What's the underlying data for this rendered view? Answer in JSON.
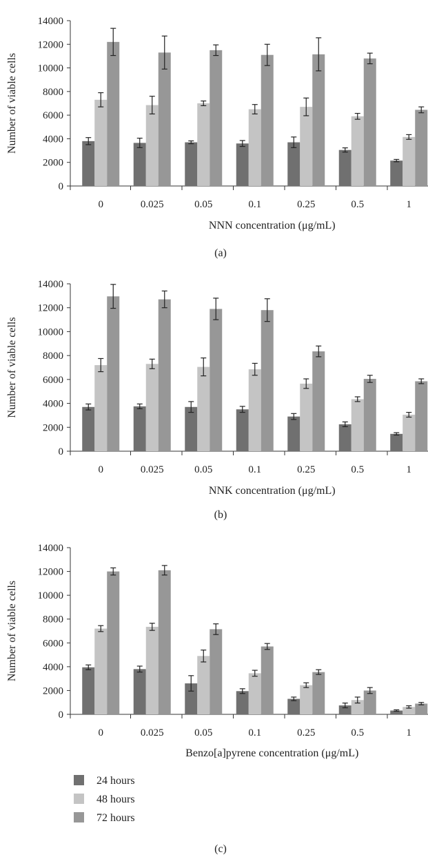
{
  "legend": {
    "items": [
      {
        "label": "24 hours",
        "color": "#707070"
      },
      {
        "label": "48 hours",
        "color": "#c4c4c4"
      },
      {
        "label": "72 hours",
        "color": "#979797"
      }
    ]
  },
  "chart_data": [
    {
      "type": "bar",
      "panel_label": "(a)",
      "xlabel": "NNN concentration (μg/mL)",
      "ylabel": "Number of viable cells",
      "ylim": [
        0,
        14000
      ],
      "yticks": [
        0,
        2000,
        4000,
        6000,
        8000,
        10000,
        12000,
        14000
      ],
      "categories": [
        "0",
        "0.025",
        "0.05",
        "0.1",
        "0.25",
        "0.5",
        "1"
      ],
      "grid": false,
      "series": [
        {
          "name": "24 hours",
          "color": "#707070",
          "values": [
            3800,
            3650,
            3700,
            3600,
            3700,
            3050,
            2150
          ],
          "errors": [
            300,
            400,
            120,
            250,
            450,
            180,
            100
          ]
        },
        {
          "name": "48 hours",
          "color": "#c4c4c4",
          "values": [
            7300,
            6850,
            7000,
            6500,
            6700,
            5900,
            4150
          ],
          "errors": [
            600,
            750,
            200,
            400,
            750,
            250,
            200
          ]
        },
        {
          "name": "72 hours",
          "color": "#979797",
          "values": [
            12200,
            11300,
            11500,
            11100,
            11150,
            10800,
            6450
          ],
          "errors": [
            1150,
            1400,
            450,
            900,
            1400,
            450,
            250
          ]
        }
      ]
    },
    {
      "type": "bar",
      "panel_label": "(b)",
      "xlabel": "NNK concentration (μg/mL)",
      "ylabel": "Number of viable cells",
      "ylim": [
        0,
        14000
      ],
      "yticks": [
        0,
        2000,
        4000,
        6000,
        8000,
        10000,
        12000,
        14000
      ],
      "categories": [
        "0",
        "0.025",
        "0.05",
        "0.1",
        "0.25",
        "0.5",
        "1"
      ],
      "grid": false,
      "series": [
        {
          "name": "24 hours",
          "color": "#707070",
          "values": [
            3700,
            3750,
            3700,
            3500,
            2900,
            2250,
            1450
          ],
          "errors": [
            250,
            200,
            450,
            250,
            250,
            200,
            100
          ]
        },
        {
          "name": "48 hours",
          "color": "#c4c4c4",
          "values": [
            7200,
            7300,
            7050,
            6850,
            5650,
            4350,
            3050
          ],
          "errors": [
            550,
            400,
            750,
            500,
            400,
            200,
            200
          ]
        },
        {
          "name": "72 hours",
          "color": "#979797",
          "values": [
            12950,
            12700,
            11900,
            11800,
            8350,
            6050,
            5850
          ],
          "errors": [
            1000,
            700,
            900,
            950,
            450,
            300,
            200
          ]
        }
      ]
    },
    {
      "type": "bar",
      "panel_label": "(c)",
      "xlabel": "Benzo[a]pyrene concentration (μg/mL)",
      "ylabel": "Number of viable cells",
      "ylim": [
        0,
        14000
      ],
      "yticks": [
        0,
        2000,
        4000,
        6000,
        8000,
        10000,
        12000,
        14000
      ],
      "categories": [
        "0",
        "0.025",
        "0.05",
        "0.1",
        "0.25",
        "0.5",
        "1"
      ],
      "grid": false,
      "series": [
        {
          "name": "24 hours",
          "color": "#707070",
          "values": [
            3950,
            3800,
            2600,
            1950,
            1300,
            750,
            320
          ],
          "errors": [
            200,
            250,
            650,
            200,
            150,
            200,
            60
          ]
        },
        {
          "name": "48 hours",
          "color": "#c4c4c4",
          "values": [
            7200,
            7350,
            4900,
            3450,
            2450,
            1200,
            620
          ],
          "errors": [
            250,
            300,
            500,
            250,
            200,
            250,
            100
          ]
        },
        {
          "name": "72 hours",
          "color": "#979797",
          "values": [
            12000,
            12100,
            7150,
            5700,
            3550,
            2000,
            900
          ],
          "errors": [
            300,
            400,
            450,
            250,
            200,
            250,
            100
          ]
        }
      ]
    }
  ]
}
